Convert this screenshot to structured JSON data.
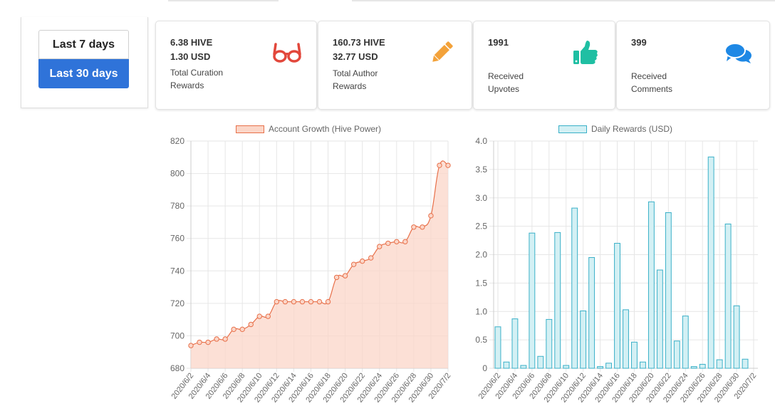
{
  "date_range": {
    "options": [
      "Last 7 days",
      "Last 30 days"
    ],
    "selected": "Last 30 days"
  },
  "stats": [
    {
      "line1": "6.38 HIVE",
      "line2": "1.30 USD",
      "label_line1": "Total Curation",
      "label_line2": "Rewards",
      "icon": "glasses-icon",
      "color": "#e2473b"
    },
    {
      "line1": "160.73 HIVE",
      "line2": "32.77 USD",
      "label_line1": "Total Author",
      "label_line2": "Rewards",
      "icon": "pencil-icon",
      "color": "#f3a23a"
    },
    {
      "line1": "1991",
      "line2": "",
      "label_line1": "Received",
      "label_line2": "Upvotes",
      "icon": "thumbs-up-icon",
      "color": "#1fbfa3"
    },
    {
      "line1": "399",
      "line2": "",
      "label_line1": "Received",
      "label_line2": "Comments",
      "icon": "comments-icon",
      "color": "#1e88e5"
    }
  ],
  "chart_data": [
    {
      "type": "line",
      "legend": "Account Growth (Hive Power)",
      "color": "#e8704a",
      "fill": "#fbd6c8",
      "ylim": [
        680,
        820
      ],
      "yticks": [
        680,
        700,
        720,
        740,
        760,
        780,
        800,
        820
      ],
      "x": [
        "2020/6/2",
        "2020/6/3",
        "2020/6/4",
        "2020/6/5",
        "2020/6/6",
        "2020/6/7",
        "2020/6/8",
        "2020/6/9",
        "2020/6/10",
        "2020/6/11",
        "2020/6/12",
        "2020/6/13",
        "2020/6/14",
        "2020/6/15",
        "2020/6/16",
        "2020/6/17",
        "2020/6/18",
        "2020/6/19",
        "2020/6/20",
        "2020/6/21",
        "2020/6/22",
        "2020/6/23",
        "2020/6/24",
        "2020/6/25",
        "2020/6/26",
        "2020/6/27",
        "2020/6/28",
        "2020/6/29",
        "2020/6/30",
        "2020/7/1",
        "2020/7/2"
      ],
      "xticks": [
        "2020/6/2",
        "2020/6/4",
        "2020/6/6",
        "2020/6/8",
        "2020/6/10",
        "2020/6/12",
        "2020/6/14",
        "2020/6/16",
        "2020/6/18",
        "2020/6/20",
        "2020/6/22",
        "2020/6/24",
        "2020/6/26",
        "2020/6/28",
        "2020/6/30",
        "2020/7/2"
      ],
      "values": [
        694,
        696,
        696,
        698,
        698,
        704,
        704,
        707,
        712,
        712,
        721,
        721,
        721,
        721,
        721,
        721,
        721,
        736,
        737,
        744,
        746,
        748,
        755,
        757,
        758,
        758,
        767,
        767,
        774,
        805,
        805
      ],
      "grid": true
    },
    {
      "type": "bar",
      "legend": "Daily Rewards (USD)",
      "color": "#3ab0c8",
      "fill": "#d3f0f4",
      "ylim": [
        0,
        4.0
      ],
      "yticks": [
        "0",
        "0.5",
        "1.0",
        "1.5",
        "2.0",
        "2.5",
        "3.0",
        "3.5",
        "4.0"
      ],
      "x": [
        "2020/6/2",
        "2020/6/3",
        "2020/6/4",
        "2020/6/5",
        "2020/6/6",
        "2020/6/7",
        "2020/6/8",
        "2020/6/9",
        "2020/6/10",
        "2020/6/11",
        "2020/6/12",
        "2020/6/13",
        "2020/6/14",
        "2020/6/15",
        "2020/6/16",
        "2020/6/17",
        "2020/6/18",
        "2020/6/19",
        "2020/6/20",
        "2020/6/21",
        "2020/6/22",
        "2020/6/23",
        "2020/6/24",
        "2020/6/25",
        "2020/6/26",
        "2020/6/27",
        "2020/6/28",
        "2020/6/29",
        "2020/6/30",
        "2020/7/1",
        "2020/7/2"
      ],
      "xticks": [
        "2020/6/2",
        "2020/6/4",
        "2020/6/6",
        "2020/6/8",
        "2020/6/10",
        "2020/6/12",
        "2020/6/14",
        "2020/6/16",
        "2020/6/18",
        "2020/6/20",
        "2020/6/22",
        "2020/6/24",
        "2020/6/26",
        "2020/6/28",
        "2020/6/30",
        "2020/7/2"
      ],
      "values": [
        0.73,
        0.11,
        0.87,
        0.05,
        2.38,
        0.21,
        0.86,
        2.39,
        0.05,
        2.82,
        1.01,
        1.95,
        0.03,
        0.09,
        2.2,
        1.03,
        0.46,
        0.11,
        2.93,
        1.73,
        2.74,
        0.48,
        0.92,
        0.03,
        0.07,
        3.72,
        0.15,
        2.54,
        1.1,
        0.16,
        0
      ],
      "grid": true
    }
  ]
}
